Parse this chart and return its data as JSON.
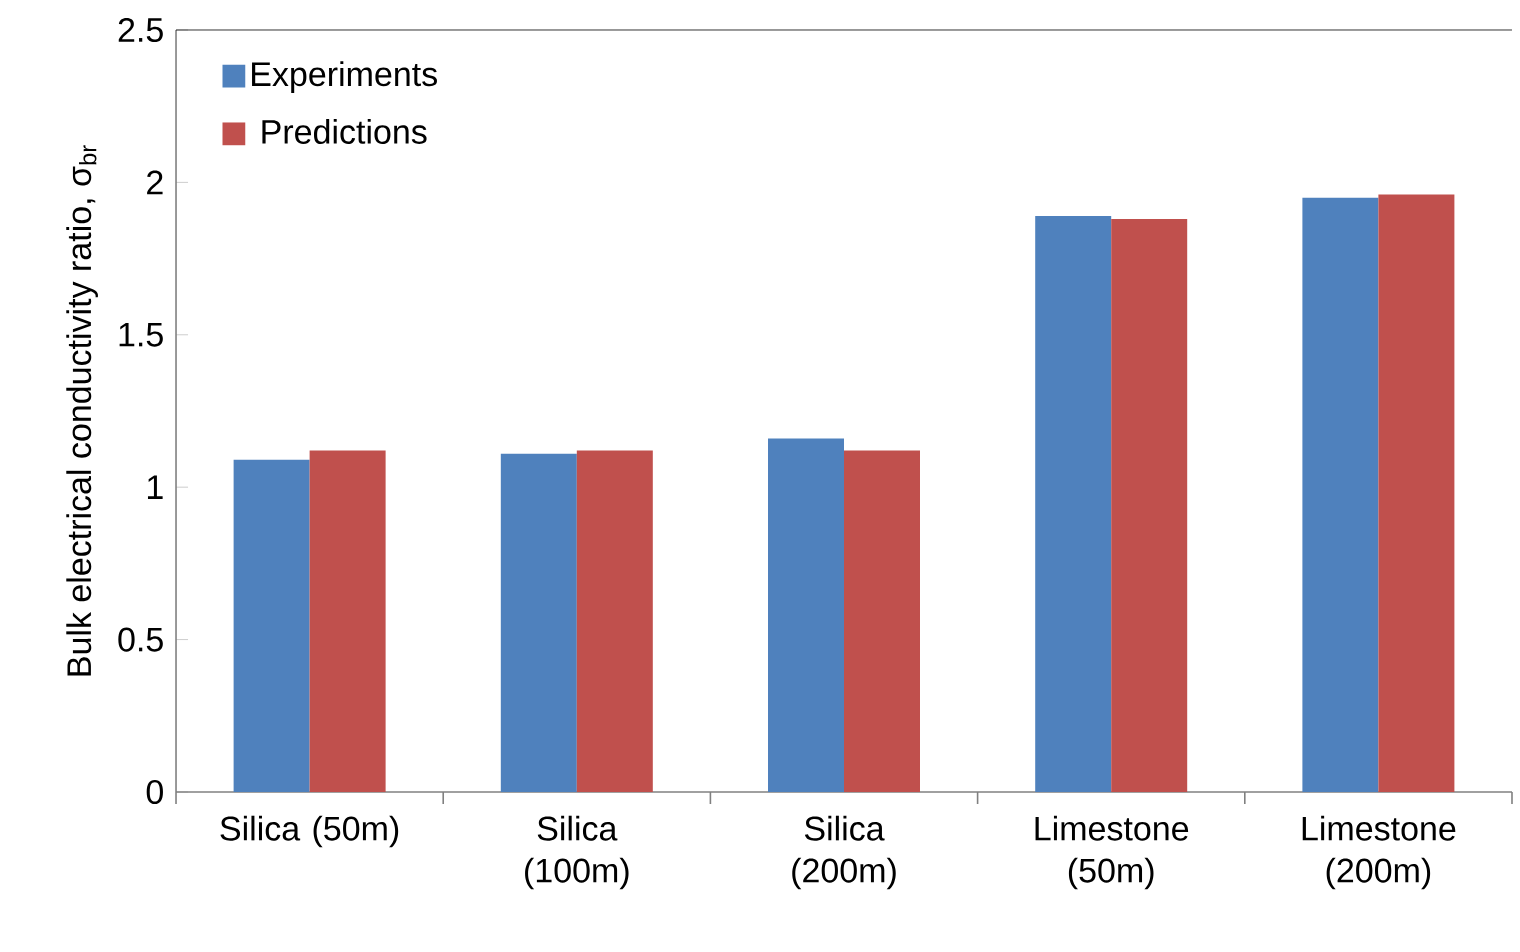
{
  "chart_data": {
    "type": "bar",
    "ylabel": "Bulk electrical conductivity ratio, σ$_{br}$",
    "categories": [
      "Silica (50m)",
      "Silica (100m)",
      "Silica (200m)",
      "Limestone (50m)",
      "Limestone (200m)"
    ],
    "series": [
      {
        "name": "Experiments",
        "color": "#4f81bd",
        "values": [
          1.09,
          1.11,
          1.16,
          1.89,
          1.95
        ]
      },
      {
        "name": "Predictions",
        "color": "#c0504d",
        "values": [
          1.12,
          1.12,
          1.12,
          1.88,
          1.96
        ]
      }
    ],
    "ylim": [
      0,
      2.5
    ],
    "yticks": [
      0,
      0.5,
      1,
      1.5,
      2,
      2.5
    ],
    "grid": false,
    "legend": "top left"
  }
}
